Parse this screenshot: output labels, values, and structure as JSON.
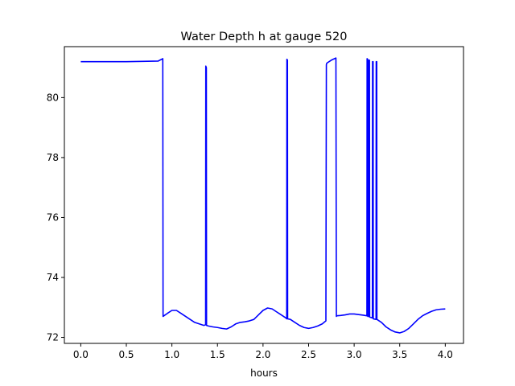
{
  "chart_data": {
    "type": "line",
    "title": "Water Depth h at gauge 520",
    "xlabel": "hours",
    "ylabel": "",
    "xlim": [
      -0.18,
      4.2
    ],
    "ylim": [
      71.8,
      81.7
    ],
    "x_ticks": [
      0.0,
      0.5,
      1.0,
      1.5,
      2.0,
      2.5,
      3.0,
      3.5,
      4.0
    ],
    "x_tick_labels": [
      "0.0",
      "0.5",
      "1.0",
      "1.5",
      "2.0",
      "2.5",
      "3.0",
      "3.5",
      "4.0"
    ],
    "y_ticks": [
      72,
      74,
      76,
      78,
      80
    ],
    "y_tick_labels": [
      "72",
      "74",
      "76",
      "78",
      "80"
    ],
    "grid": false,
    "legend": "none",
    "series": [
      {
        "color": "#0000ff",
        "x": [
          0.0,
          0.5,
          0.85,
          0.9,
          0.903,
          0.95,
          1.0,
          1.05,
          1.1,
          1.15,
          1.2,
          1.25,
          1.3,
          1.35,
          1.37,
          1.372,
          1.378,
          1.38,
          1.4,
          1.45,
          1.5,
          1.55,
          1.6,
          1.65,
          1.7,
          1.75,
          1.8,
          1.85,
          1.9,
          1.95,
          2.0,
          2.05,
          2.1,
          2.15,
          2.2,
          2.25,
          2.26,
          2.262,
          2.268,
          2.27,
          2.3,
          2.35,
          2.4,
          2.45,
          2.5,
          2.55,
          2.6,
          2.65,
          2.69,
          2.695,
          2.7,
          2.75,
          2.8,
          2.805,
          2.81,
          2.85,
          2.9,
          2.95,
          3.0,
          3.05,
          3.1,
          3.14,
          3.142,
          3.148,
          3.15,
          3.16,
          3.162,
          3.168,
          3.17,
          3.2,
          3.202,
          3.208,
          3.21,
          3.24,
          3.242,
          3.248,
          3.25,
          3.3,
          3.35,
          3.4,
          3.45,
          3.5,
          3.55,
          3.6,
          3.65,
          3.7,
          3.75,
          3.8,
          3.85,
          3.9,
          3.95,
          4.0
        ],
        "y": [
          81.2,
          81.2,
          81.22,
          81.3,
          72.7,
          72.8,
          72.9,
          72.9,
          72.8,
          72.7,
          72.6,
          72.5,
          72.45,
          72.4,
          72.42,
          81.05,
          81.0,
          72.4,
          72.38,
          72.35,
          72.33,
          72.3,
          72.28,
          72.35,
          72.45,
          72.5,
          72.52,
          72.55,
          72.6,
          72.75,
          72.9,
          72.98,
          72.95,
          72.85,
          72.75,
          72.65,
          72.62,
          81.28,
          81.25,
          72.62,
          72.6,
          72.5,
          72.4,
          72.33,
          72.3,
          72.33,
          72.38,
          72.45,
          72.55,
          81.1,
          81.15,
          81.25,
          81.32,
          72.7,
          72.72,
          72.73,
          72.75,
          72.78,
          72.78,
          72.76,
          72.74,
          72.72,
          81.3,
          81.28,
          72.7,
          72.7,
          81.25,
          81.25,
          72.68,
          72.65,
          81.2,
          81.2,
          72.62,
          72.6,
          81.2,
          81.2,
          72.6,
          72.5,
          72.35,
          72.25,
          72.18,
          72.15,
          72.2,
          72.3,
          72.45,
          72.6,
          72.72,
          72.8,
          72.87,
          72.92,
          72.94,
          72.95
        ]
      }
    ]
  }
}
